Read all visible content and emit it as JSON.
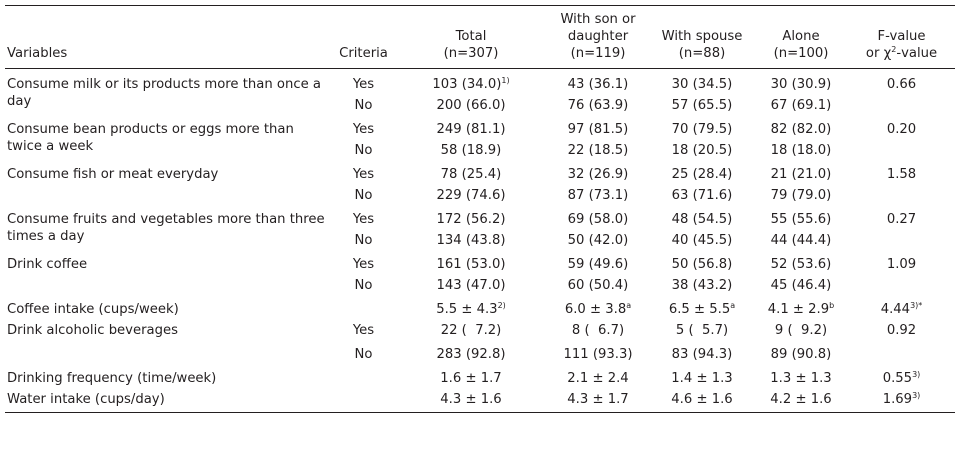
{
  "header": {
    "variables": "Variables",
    "criteria": "Criteria",
    "total": [
      "Total",
      "(n=307)"
    ],
    "son": [
      "With son or",
      "daughter",
      "(n=119)"
    ],
    "spouse": [
      "With spouse",
      "(n=88)"
    ],
    "alone": [
      "Alone",
      "(n=100)"
    ],
    "fvalue": [
      "F-value",
      "or χ",
      "2",
      "-value"
    ]
  },
  "rows": {
    "milk": {
      "label": "Consume milk or its products more than once a day",
      "yes": {
        "criteria": "Yes",
        "total": "103 (34.0)",
        "total_sup": "1)",
        "son": "43 (36.1)",
        "spouse": "30 (34.5)",
        "alone": "30 (30.9)",
        "f": "0.66"
      },
      "no": {
        "criteria": "No",
        "total": "200 (66.0)",
        "son": "76 (63.9)",
        "spouse": "57 (65.5)",
        "alone": "67 (69.1)"
      }
    },
    "bean": {
      "label": "Consume bean products or eggs more than twice a week",
      "yes": {
        "criteria": "Yes",
        "total": "249 (81.1)",
        "son": "97 (81.5)",
        "spouse": "70 (79.5)",
        "alone": "82 (82.0)",
        "f": "0.20"
      },
      "no": {
        "criteria": "No",
        "total": "58 (18.9)",
        "son": "22 (18.5)",
        "spouse": "18 (20.5)",
        "alone": "18 (18.0)"
      }
    },
    "fish": {
      "label": "Consume fish or meat everyday",
      "yes": {
        "criteria": "Yes",
        "total": "78 (25.4)",
        "son": "32 (26.9)",
        "spouse": "25 (28.4)",
        "alone": "21 (21.0)",
        "f": "1.58"
      },
      "no": {
        "criteria": "No",
        "total": "229 (74.6)",
        "son": "87 (73.1)",
        "spouse": "63 (71.6)",
        "alone": "79 (79.0)"
      }
    },
    "fruit": {
      "label": "Consume fruits and vegetables more than three times a day",
      "yes": {
        "criteria": "Yes",
        "total": "172 (56.2)",
        "son": "69 (58.0)",
        "spouse": "48 (54.5)",
        "alone": "55 (55.6)",
        "f": "0.27"
      },
      "no": {
        "criteria": "No",
        "total": "134 (43.8)",
        "son": "50 (42.0)",
        "spouse": "40 (45.5)",
        "alone": "44 (44.4)"
      }
    },
    "coffee": {
      "label": "Drink coffee",
      "yes": {
        "criteria": "Yes",
        "total": "161 (53.0)",
        "son": "59 (49.6)",
        "spouse": "50 (56.8)",
        "alone": "52 (53.6)",
        "f": "1.09"
      },
      "no": {
        "criteria": "No",
        "total": "143 (47.0)",
        "son": "60 (50.4)",
        "spouse": "38 (43.2)",
        "alone": "45 (46.4)"
      }
    },
    "coffee_intake": {
      "label": "Coffee intake (cups/week)",
      "total": "5.5 ± 4.3",
      "total_sup": "2)",
      "son": "6.0 ± 3.8",
      "son_sup": "a",
      "spouse": "6.5 ± 5.5",
      "spouse_sup": "a",
      "alone": "4.1 ± 2.9",
      "alone_sup": "b",
      "f": "4.44",
      "f_sup": "3)*"
    },
    "alcohol": {
      "label": "Drink alcoholic beverages",
      "yes": {
        "criteria": "Yes",
        "total": "22 (  7.2)",
        "son": "8 (  6.7)",
        "spouse": "5 (  5.7)",
        "alone": "9 (  9.2)",
        "f": "0.92"
      },
      "no": {
        "criteria": "No",
        "total": "283 (92.8)",
        "son": "111 (93.3)",
        "spouse": "83 (94.3)",
        "alone": "89 (90.8)"
      }
    },
    "drink_freq": {
      "label": "Drinking frequency (time/week)",
      "total": "1.6 ± 1.7",
      "son": "2.1 ± 2.4",
      "spouse": "1.4 ± 1.3",
      "alone": "1.3 ± 1.3",
      "f": "0.55",
      "f_sup": "3)"
    },
    "water": {
      "label": "Water intake (cups/day)",
      "total": "4.3 ± 1.6",
      "son": "4.3 ± 1.7",
      "spouse": "4.6 ± 1.6",
      "alone": "4.2 ± 1.6",
      "f": "1.69",
      "f_sup": "3)"
    }
  }
}
